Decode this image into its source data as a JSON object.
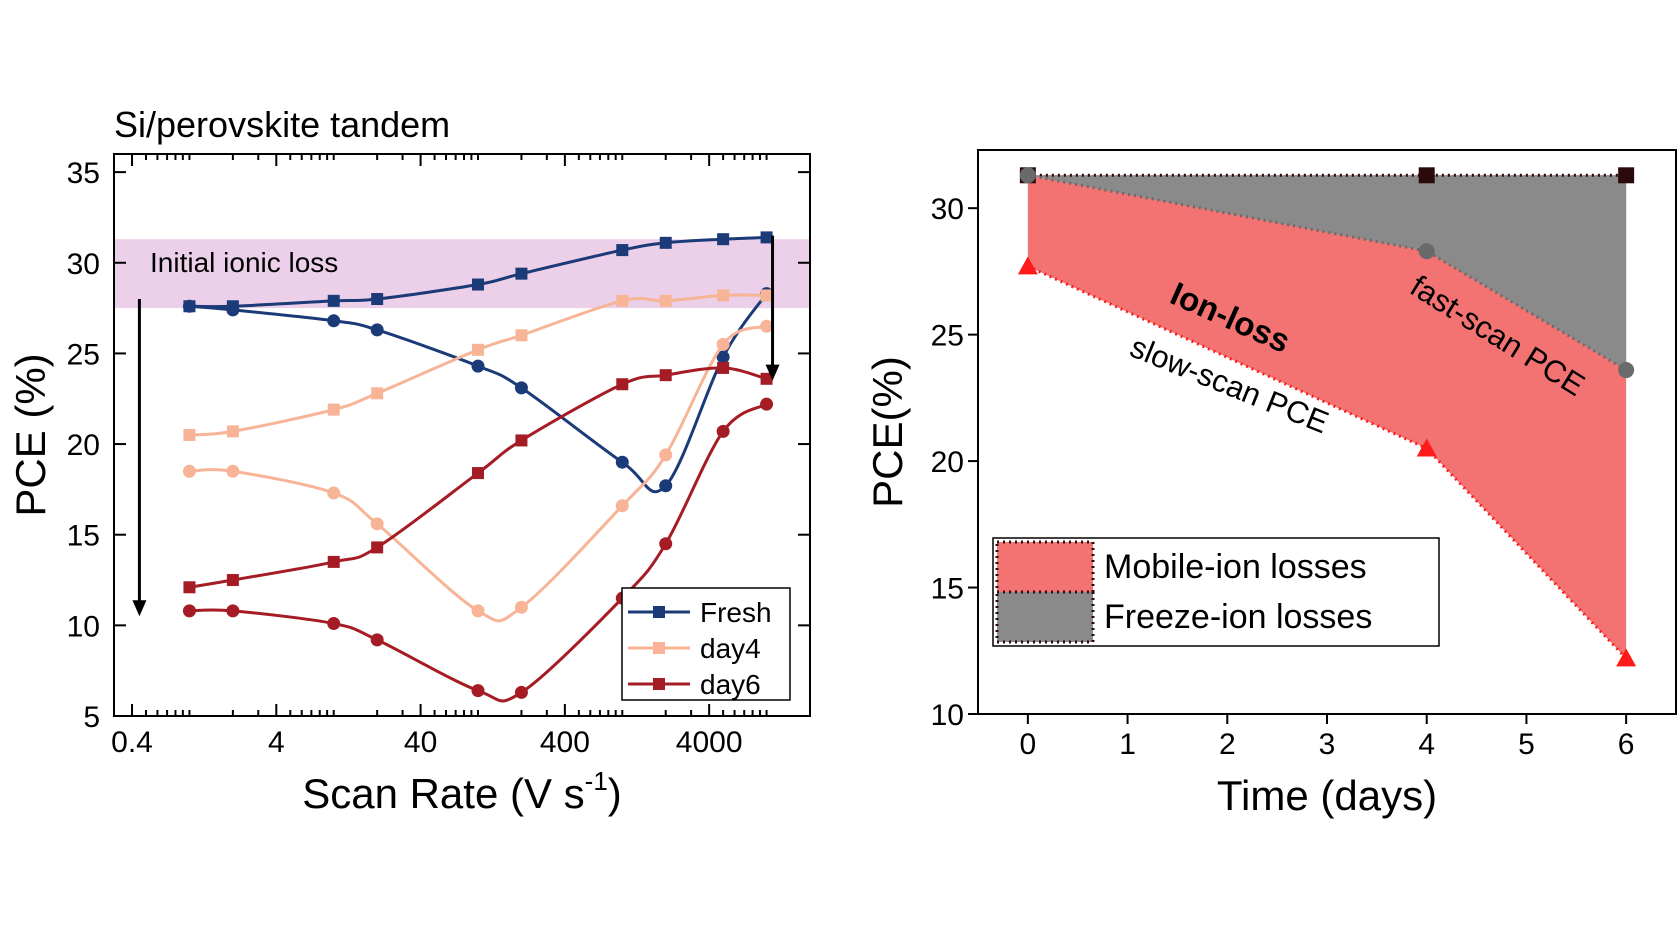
{
  "chart_data": [
    {
      "type": "line",
      "title": "Si/perovskite tandem",
      "xlabel": "Scan Rate (V s",
      "xlabel_sup": "-1",
      "xlabel_close": ")",
      "ylabel": "PCE (%)",
      "x_scale": "log",
      "xlim": [
        0.3,
        20000
      ],
      "ylim": [
        5,
        36
      ],
      "x_ticks": [
        0.4,
        4,
        40,
        400,
        4000
      ],
      "x_tick_labels": [
        "0.4",
        "4",
        "40",
        "400",
        "4000"
      ],
      "y_ticks": [
        5,
        10,
        15,
        20,
        25,
        30,
        35
      ],
      "y_tick_labels": [
        "5",
        "10",
        "15",
        "20",
        "25",
        "30",
        "35"
      ],
      "band": {
        "label": "Initial ionic loss",
        "y_range": [
          27.5,
          31.3
        ],
        "color": "#e6bfe0"
      },
      "arrows": [
        {
          "x": 0.45,
          "from": 28,
          "to": 10.5
        },
        {
          "x": 11000,
          "from": 31.5,
          "to": 23.5
        }
      ],
      "legend_position": "bottom-right",
      "x": [
        1,
        2,
        10,
        20,
        100,
        200,
        1000,
        2000,
        5000,
        10000
      ],
      "series": [
        {
          "name": "Fresh",
          "color": "#1a3a78",
          "marker": "square",
          "values": [
            27.6,
            27.6,
            27.9,
            28.0,
            28.8,
            29.4,
            30.7,
            31.1,
            31.3,
            31.4
          ]
        },
        {
          "name": "",
          "color": "#1a3a78",
          "marker": "circle",
          "values": [
            27.6,
            27.4,
            26.8,
            26.3,
            24.3,
            23.1,
            19.0,
            17.7,
            24.8,
            28.3
          ]
        },
        {
          "name": "day4",
          "color": "#f7b496",
          "marker": "square",
          "values": [
            20.5,
            20.7,
            21.9,
            22.8,
            25.2,
            26.0,
            27.9,
            27.9,
            28.2,
            28.2
          ]
        },
        {
          "name": "",
          "color": "#f7b496",
          "marker": "circle",
          "values": [
            18.5,
            18.5,
            17.3,
            15.6,
            10.8,
            11.0,
            16.6,
            19.4,
            25.5,
            26.5
          ]
        },
        {
          "name": "day6",
          "color": "#a51c24",
          "marker": "square",
          "values": [
            12.1,
            12.5,
            13.5,
            14.3,
            18.4,
            20.2,
            23.3,
            23.8,
            24.2,
            23.6
          ]
        },
        {
          "name": "",
          "color": "#a51c24",
          "marker": "circle",
          "values": [
            10.8,
            10.8,
            10.1,
            9.2,
            6.4,
            6.3,
            11.5,
            14.5,
            20.7,
            22.2
          ]
        }
      ]
    },
    {
      "type": "area",
      "title": "",
      "xlabel": "Time (days)",
      "ylabel": "PCE(%)",
      "xlim": [
        -0.5,
        6.5
      ],
      "ylim": [
        10,
        32.3
      ],
      "x_ticks": [
        0,
        1,
        2,
        3,
        4,
        5,
        6
      ],
      "x_tick_labels": [
        "0",
        "1",
        "2",
        "3",
        "4",
        "5",
        "6"
      ],
      "y_ticks": [
        10,
        15,
        20,
        25,
        30
      ],
      "y_tick_labels": [
        "10",
        "15",
        "20",
        "25",
        "30"
      ],
      "x": [
        0,
        4,
        6
      ],
      "series": [
        {
          "name": "",
          "marker": "square",
          "color": "#2a0a0a",
          "values": [
            31.3,
            31.3,
            31.3
          ]
        },
        {
          "name": "fast-scan PCE",
          "marker": "circle",
          "color": "#6a6a6a",
          "values": [
            31.3,
            28.3,
            23.6
          ]
        },
        {
          "name": "slow-scan PCE",
          "marker": "triangle",
          "color": "#ff1a1a",
          "values": [
            27.7,
            20.5,
            12.2
          ]
        }
      ],
      "regions": [
        {
          "name": "Mobile-ion losses",
          "color": "#f37373",
          "between": [
            "top",
            "slow"
          ]
        },
        {
          "name": "Freeze-ion losses",
          "color": "#8a8a8a",
          "between": [
            "top",
            "fast"
          ]
        }
      ],
      "annotations": [
        "Ion-loss",
        "fast-scan PCE",
        "slow-scan PCE"
      ],
      "legend": [
        "Mobile-ion losses",
        "Freeze-ion losses"
      ],
      "legend_position": "bottom-left"
    }
  ]
}
